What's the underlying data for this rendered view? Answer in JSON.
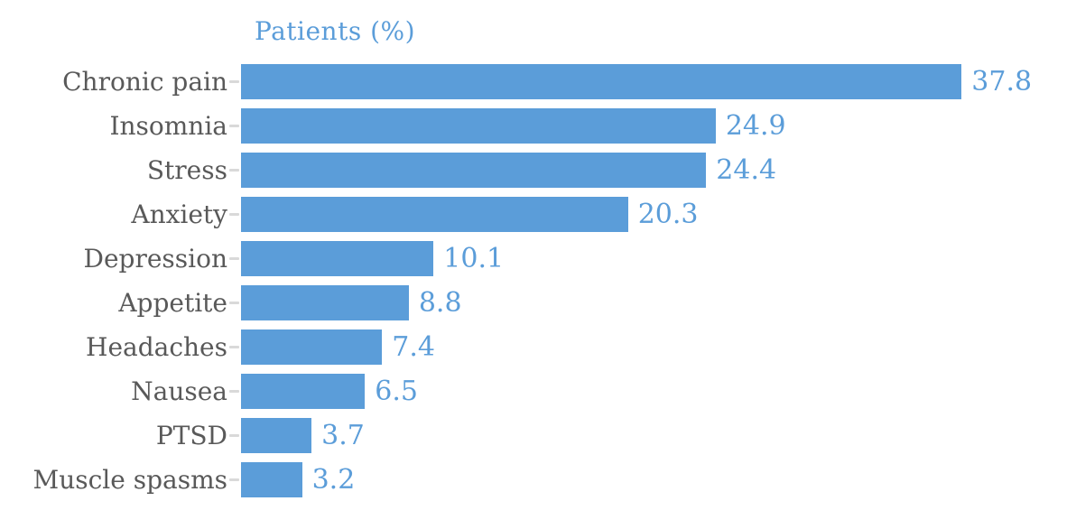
{
  "chart_data": {
    "type": "bar",
    "orientation": "horizontal",
    "title": "Patients (%)",
    "categories": [
      "Chronic pain",
      "Insomnia",
      "Stress",
      "Anxiety",
      "Depression",
      "Appetite",
      "Headaches",
      "Nausea",
      "PTSD",
      "Muscle spasms"
    ],
    "values": [
      37.8,
      24.9,
      24.4,
      20.3,
      10.1,
      8.8,
      7.4,
      6.5,
      3.7,
      3.2
    ],
    "value_labels": [
      "37.8",
      "24.9",
      "24.4",
      "20.3",
      "10.1",
      "8.8",
      "7.4",
      "6.5",
      "3.7",
      "3.2"
    ],
    "xlabel": "",
    "ylabel": "",
    "xlim": [
      0,
      43.8
    ],
    "grid": false,
    "legend": false,
    "colors": {
      "bar": "#5B9DD9",
      "title": "#5B9DD9",
      "value_label": "#5B9DD9",
      "category_label": "#595959",
      "tick": "#D9D9D9",
      "background": "#FFFFFF"
    }
  }
}
